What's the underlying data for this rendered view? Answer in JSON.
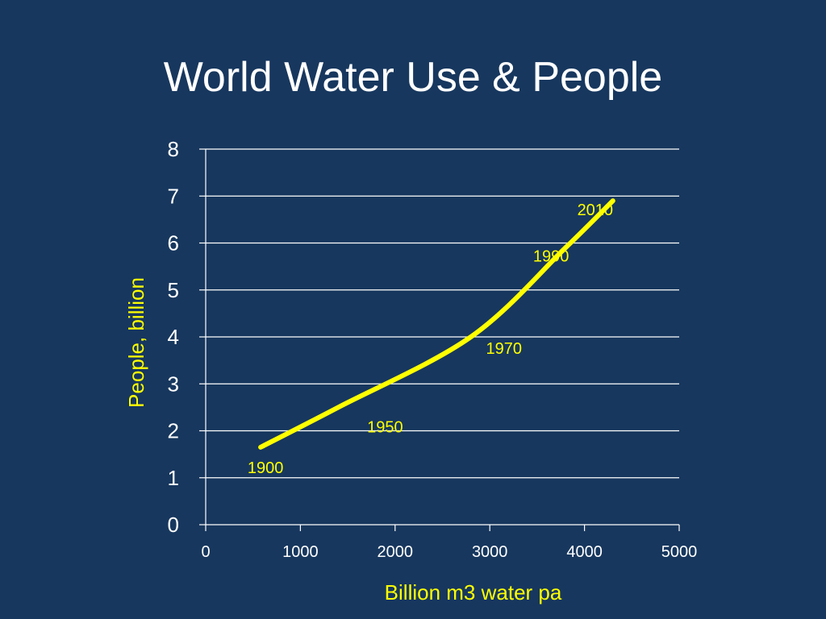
{
  "slide": {
    "title": "World Water Use & People"
  },
  "colors": {
    "background": "#17375e",
    "series": "#ffff00",
    "grid": "#ffffff",
    "text": "#ffffff"
  },
  "chart_data": {
    "type": "line",
    "title": "World Water Use & People",
    "xlabel": "Billion m3 water pa",
    "ylabel": "People, billion",
    "xlim": [
      0,
      5000
    ],
    "ylim": [
      0,
      8
    ],
    "x_ticks": [
      0,
      1000,
      2000,
      3000,
      4000,
      5000
    ],
    "y_ticks": [
      0,
      1,
      2,
      3,
      4,
      5,
      6,
      7,
      8
    ],
    "grid": true,
    "legend": "none",
    "series": [
      {
        "points": [
          {
            "x": 580,
            "y": 1.65,
            "label": "1900"
          },
          {
            "x": 1400,
            "y": 2.5,
            "label": "1950"
          },
          {
            "x": 2800,
            "y": 4.0,
            "label": "1970"
          },
          {
            "x": 3800,
            "y": 5.9,
            "label": "1990"
          },
          {
            "x": 4300,
            "y": 6.9,
            "label": "2010"
          }
        ]
      }
    ]
  }
}
